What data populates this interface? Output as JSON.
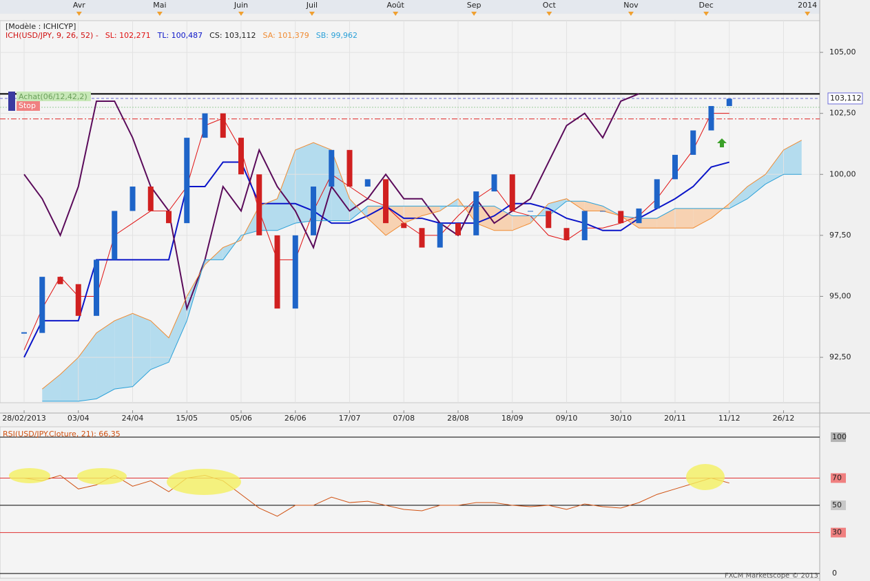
{
  "chart_data": [
    {
      "type": "candlestick",
      "title": "[Modèle : ICHICYP]",
      "indicator_label": "ICH(USD/JPY, 9, 26, 52) -",
      "indicator_color": "#d01010",
      "x": [
        0,
        5,
        10,
        15,
        20,
        25,
        30,
        35,
        40,
        45,
        50,
        55,
        60,
        65,
        70,
        75,
        80,
        85,
        90,
        95,
        100,
        105,
        110,
        115,
        120,
        125,
        130,
        135,
        140,
        145,
        150,
        155,
        160,
        165,
        170,
        175,
        180,
        185,
        190,
        195,
        200,
        205,
        210,
        215
      ],
      "xlim": [
        -6.67,
        220
      ],
      "xticks": [
        {
          "value": 0,
          "label": "28/02/2013"
        },
        {
          "value": 15,
          "label": "03/04"
        },
        {
          "value": 30,
          "label": "24/04"
        },
        {
          "value": 45,
          "label": "15/05"
        },
        {
          "value": 60,
          "label": "05/06"
        },
        {
          "value": 75,
          "label": "26/06"
        },
        {
          "value": 90,
          "label": "17/07"
        },
        {
          "value": 105,
          "label": "07/08"
        },
        {
          "value": 120,
          "label": "28/08"
        },
        {
          "value": 135,
          "label": "18/09"
        },
        {
          "value": 150,
          "label": "09/10"
        },
        {
          "value": 165,
          "label": "30/10"
        },
        {
          "value": 180,
          "label": "20/11"
        },
        {
          "value": 195,
          "label": "11/12"
        },
        {
          "value": 210,
          "label": "26/12"
        }
      ],
      "top_ticks": [
        {
          "value": 15.2,
          "label": "Avr"
        },
        {
          "value": 37.5,
          "label": "Mai"
        },
        {
          "value": 60,
          "label": "Juin"
        },
        {
          "value": 79.6,
          "label": "Juil"
        },
        {
          "value": 102.7,
          "label": "Août"
        },
        {
          "value": 124.4,
          "label": "Sep"
        },
        {
          "value": 145.2,
          "label": "Oct"
        },
        {
          "value": 167.8,
          "label": "Nov"
        },
        {
          "value": 188.6,
          "label": "Dec"
        },
        {
          "value": 216.6,
          "label": "2014"
        }
      ],
      "ylim": [
        90.64,
        106.3
      ],
      "yticks": [
        {
          "value": 92.5,
          "label": "92,50"
        },
        {
          "value": 95,
          "label": "95,00"
        },
        {
          "value": 97.5,
          "label": "97,50"
        },
        {
          "value": 100,
          "label": "100,00"
        },
        {
          "value": 102.5,
          "label": "102,50"
        },
        {
          "value": 105,
          "label": "105,00"
        }
      ],
      "grid": true,
      "price": {
        "up_color": "#1e64c8",
        "down_color": "#d02020",
        "values": [
          93.5,
          95.8,
          95.5,
          94.2,
          96.5,
          98.5,
          99.5,
          98.5,
          98.0,
          101.5,
          102.5,
          101.5,
          100.0,
          97.5,
          94.5,
          97.5,
          99.5,
          101.0,
          99.5,
          99.8,
          98.0,
          97.8,
          97.0,
          98.0,
          97.5,
          99.3,
          100.0,
          98.5,
          98.5,
          97.8,
          97.3,
          98.5,
          98.5,
          98.0,
          98.6,
          99.8,
          100.8,
          101.8,
          102.8,
          103.1,
          null,
          null,
          null,
          null
        ]
      },
      "series": [
        {
          "name": "SL: 102,271",
          "color": "#e01010",
          "legend_color": "#e01010",
          "values": [
            92.8,
            94.5,
            95.8,
            95.0,
            95.0,
            97.5,
            98.0,
            98.5,
            98.5,
            99.5,
            102.0,
            102.3,
            101.0,
            98.5,
            96.5,
            96.5,
            98.5,
            100.0,
            99.5,
            99.0,
            98.7,
            98.0,
            97.5,
            97.5,
            98.3,
            99.0,
            99.5,
            98.5,
            98.3,
            97.5,
            97.3,
            97.8,
            97.8,
            98.0,
            98.3,
            99.0,
            100.0,
            101.0,
            102.5,
            102.5,
            null,
            null,
            null,
            null
          ]
        },
        {
          "name": "TL: 100,487",
          "color": "#0a14c8",
          "legend_color": "#0a14c8",
          "values": [
            92.5,
            94.0,
            94.0,
            94.0,
            96.5,
            96.5,
            96.5,
            96.5,
            96.5,
            99.5,
            99.5,
            100.5,
            100.5,
            98.8,
            98.8,
            98.8,
            98.5,
            98.0,
            98.0,
            98.3,
            98.7,
            98.2,
            98.2,
            98.0,
            98.0,
            98.0,
            98.3,
            98.8,
            98.8,
            98.6,
            98.2,
            98.0,
            97.7,
            97.7,
            98.2,
            98.6,
            99.0,
            99.5,
            100.3,
            100.5,
            null,
            null,
            null,
            null
          ]
        },
        {
          "name": "CS: 103,112",
          "color": "#5a0a5a",
          "legend_color": "#202020",
          "values": [
            100.0,
            99.0,
            97.5,
            99.5,
            103.0,
            103.0,
            101.5,
            99.5,
            98.5,
            94.5,
            96.5,
            99.5,
            98.5,
            101.0,
            99.5,
            98.5,
            97.0,
            99.5,
            98.5,
            99.0,
            100.0,
            99.0,
            99.0,
            98.0,
            97.5,
            99.0,
            98.0,
            98.5,
            99.0,
            100.5,
            102.0,
            102.5,
            101.5,
            103.0,
            103.3,
            null,
            null,
            null,
            null,
            null,
            null,
            null,
            null,
            null
          ]
        },
        {
          "name": "SA: 101,379",
          "color": "#f08a30",
          "legend_color": "#f08a30",
          "values": [
            null,
            91.2,
            91.8,
            92.5,
            93.5,
            94.0,
            94.3,
            94.0,
            93.3,
            95.0,
            96.3,
            97.0,
            97.3,
            98.7,
            99.0,
            101.0,
            101.3,
            101.0,
            99.0,
            98.2,
            97.5,
            98.0,
            98.3,
            98.5,
            99.0,
            98.0,
            97.7,
            97.7,
            98.0,
            98.8,
            99.0,
            98.5,
            98.5,
            98.3,
            97.8,
            97.8,
            97.8,
            97.8,
            98.2,
            98.8,
            99.5,
            100.0,
            101.0,
            101.4
          ]
        },
        {
          "name": "SB: 99,962",
          "color": "#2aa0d8",
          "legend_color": "#2aa0d8",
          "values": [
            null,
            90.7,
            90.7,
            90.7,
            90.8,
            91.2,
            91.3,
            92.0,
            92.3,
            94.0,
            96.5,
            96.5,
            97.5,
            97.7,
            97.7,
            98.0,
            98.1,
            98.1,
            98.1,
            98.7,
            98.7,
            98.7,
            98.7,
            98.7,
            98.7,
            98.7,
            98.7,
            98.3,
            98.3,
            98.3,
            98.9,
            98.9,
            98.7,
            98.3,
            98.2,
            98.2,
            98.6,
            98.6,
            98.6,
            98.6,
            99.0,
            99.6,
            100.0,
            100.0
          ]
        }
      ],
      "cloud_colors": {
        "bullish": "#b4dcee",
        "bearish": "#f7d2b2"
      },
      "levels": [
        {
          "value": 103.3,
          "color": "#000000",
          "style": "solid"
        },
        {
          "value": 103.112,
          "color": "#6a6ad8",
          "style": "dashed",
          "label": "103,112"
        },
        {
          "value": 102.75,
          "color": "#99cc99",
          "style": "dotted"
        },
        {
          "value": 102.271,
          "color": "#e02020",
          "style": "dashdot"
        }
      ],
      "annotations": [
        "Achat(06/12,42,2)",
        "Stop"
      ],
      "footer": "FXCM Marketscope © 2013"
    },
    {
      "type": "line",
      "title": "RSI(USD/JPY.Cloture, 21): 66,35",
      "x": [
        0,
        5,
        10,
        15,
        20,
        25,
        30,
        35,
        40,
        45,
        50,
        55,
        60,
        65,
        70,
        75,
        80,
        85,
        90,
        95,
        100,
        105,
        110,
        115,
        120,
        125,
        130,
        135,
        140,
        145,
        150,
        155,
        160,
        165,
        170,
        175,
        180,
        185,
        190,
        195,
        200,
        205,
        210,
        215
      ],
      "xlim": [
        -6.67,
        220
      ],
      "ylim": [
        -3.5,
        107.6
      ],
      "yticks": [
        0,
        30,
        50,
        70,
        100
      ],
      "tick_box_colors": [
        "#f0f0f0",
        "#f08080",
        "#c8c8c8",
        "#f08080",
        "#b4b4b4"
      ],
      "tick_line_colors": [
        "#000000",
        "#e03030",
        "#000000",
        "#e03030",
        "#000000"
      ],
      "series": [
        {
          "color": "#d05010",
          "values": [
            70,
            68,
            72,
            62,
            65,
            72,
            64,
            68,
            60,
            70,
            72,
            68,
            58,
            48,
            42,
            50,
            50,
            56,
            52,
            53,
            50,
            47,
            46,
            50,
            50,
            52,
            52,
            50,
            49,
            50,
            47,
            51,
            49,
            48,
            52,
            58,
            62,
            66,
            70,
            66.35,
            null,
            null,
            null,
            null
          ]
        }
      ]
    }
  ]
}
